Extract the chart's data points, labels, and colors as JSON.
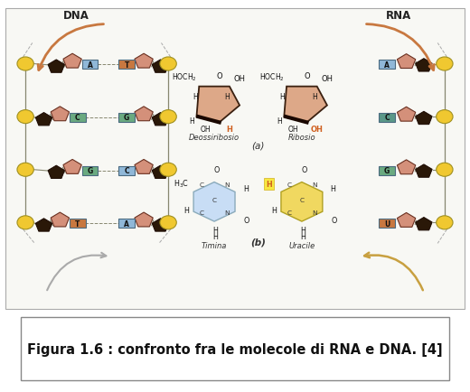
{
  "title": "Figura 1.6 : confronto fra le molecole di RNA e DNA. [4]",
  "title_fontsize": 10.5,
  "title_fontweight": "bold",
  "bg_color": "#ffffff",
  "main_bg": "#f8f8f4",
  "dna_label": "DNA",
  "rna_label": "RNA",
  "label_a": "(a)",
  "label_b": "(b)",
  "deossiribosio": "Deossiribosio",
  "ribosio": "Ribosio",
  "timina": "Timina",
  "uracile": "Uracile",
  "yellow": "#f0c830",
  "salmon": "#d4907a",
  "dark_pent": "#3a2010",
  "blue_box": "#90b8d8",
  "green_box": "#6aaa80",
  "teal_box": "#5a9888",
  "orange_box": "#c87840",
  "arrow_color": "#c87840",
  "sugar_fill": "#d4907a",
  "sugar_dark": "#2a1808",
  "light_blue": "#b8d8f0",
  "light_yellow": "#f0d870",
  "dna_pairs": [
    {
      "y": 6.5,
      "left": "A",
      "lcol": "#90b8d8",
      "right": "T",
      "rcol": "#c87840"
    },
    {
      "y": 5.1,
      "left": "C",
      "lcol": "#6aaa80",
      "right": "G",
      "rcol": "#6aaa80"
    },
    {
      "y": 3.7,
      "left": "G",
      "lcol": "#6aaa80",
      "right": "C",
      "rcol": "#90b8d8"
    },
    {
      "y": 2.3,
      "left": "T",
      "lcol": "#c87840",
      "right": "A",
      "rcol": "#90b8d8"
    }
  ],
  "rna_entries": [
    {
      "y": 6.5,
      "lab": "A",
      "col": "#90b8d8"
    },
    {
      "y": 5.1,
      "lab": "C",
      "col": "#5a9888"
    },
    {
      "y": 3.7,
      "lab": "G",
      "col": "#6aaa80"
    },
    {
      "y": 2.3,
      "lab": "U",
      "col": "#c87840"
    }
  ]
}
